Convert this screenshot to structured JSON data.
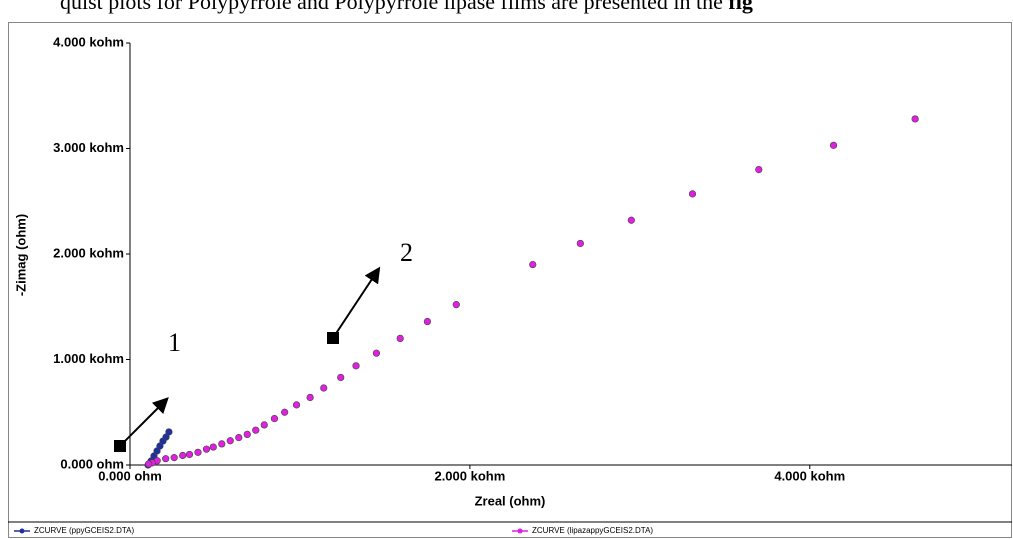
{
  "header": {
    "text": "quist plots for Polypyrrole and Polypyrrole lipase films are presented in the",
    "bold": "fig"
  },
  "chart_data": {
    "type": "scatter",
    "xlabel": "Zreal (ohm)",
    "ylabel": "-Zimag (ohm)",
    "xlim": [
      0,
      5190
    ],
    "ylim": [
      0,
      4000
    ],
    "xticks": [
      {
        "value": 0,
        "label": "0.000 ohm"
      },
      {
        "value": 2000,
        "label": "2.000 kohm"
      },
      {
        "value": 4000,
        "label": "4.000 kohm"
      }
    ],
    "yticks": [
      {
        "value": 0,
        "label": "0.000 ohm"
      },
      {
        "value": 1000,
        "label": "1.000 kohm"
      },
      {
        "value": 2000,
        "label": "2.000 kohm"
      },
      {
        "value": 3000,
        "label": "3.000 kohm"
      },
      {
        "value": 4000,
        "label": "4.000 kohm"
      }
    ],
    "annotations": [
      "1",
      "2"
    ],
    "series": [
      {
        "name": "ZCURVE (ppyGCEIS2.DTA)",
        "color": "#2030a0",
        "line": true,
        "x": [
          106,
          124,
          141,
          159,
          176,
          194,
          212,
          229
        ],
        "values": [
          0,
          38,
          85,
          133,
          180,
          227,
          265,
          313
        ]
      },
      {
        "name": "ZCURVE (lipazappyGCEIS2.DTA)",
        "color": "#e020e0",
        "line": false,
        "x": [
          4620,
          4140,
          3700,
          3310,
          2950,
          2650,
          2370,
          1920,
          1750,
          1590,
          1450,
          1330,
          1240,
          1140,
          1060,
          980,
          910,
          850,
          790,
          740,
          690,
          640,
          590,
          540,
          490,
          450,
          400,
          350,
          310,
          260,
          210,
          160,
          130,
          110
        ],
        "values": [
          3280,
          3030,
          2800,
          2570,
          2320,
          2100,
          1900,
          1520,
          1360,
          1200,
          1060,
          940,
          830,
          730,
          640,
          570,
          500,
          440,
          380,
          330,
          290,
          260,
          230,
          200,
          170,
          150,
          120,
          100,
          90,
          70,
          60,
          40,
          20,
          10
        ]
      }
    ]
  }
}
